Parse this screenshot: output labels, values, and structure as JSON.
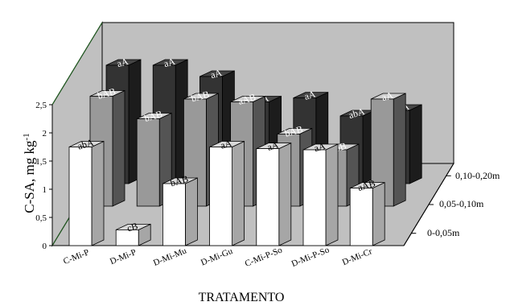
{
  "chart_data": {
    "type": "bar",
    "categories": [
      "C-Mi-P",
      "D-Mi-P",
      "D-Mi-Mu",
      "D-Mi-Gu",
      "C-Mi-P-So",
      "D-Mi-P-So",
      "D-Mi-Cr"
    ],
    "series": [
      {
        "name": "0-0,05m",
        "values": [
          1.75,
          0.28,
          1.1,
          1.75,
          1.72,
          1.7,
          1.02
        ],
        "labels": [
          "abA",
          "cB",
          "bAB",
          "aA",
          "aA",
          "aA",
          "aAB"
        ],
        "color": "#ffffff"
      },
      {
        "name": "0,05-0,10m",
        "values": [
          1.95,
          1.55,
          1.9,
          1.85,
          1.28,
          1.0,
          1.9
        ],
        "labels": [
          "bAB",
          "bAB",
          "bAB",
          "aAB",
          "bAB",
          "bB",
          "aA"
        ],
        "color": "#999999"
      },
      {
        "name": "0,10-0,20m",
        "values": [
          2.1,
          2.1,
          1.9,
          1.45,
          1.52,
          1.2,
          1.3
        ],
        "labels": [
          "aA",
          "aA",
          "aA",
          "aA",
          "aA",
          "abA",
          "aA"
        ],
        "color": "#333333"
      }
    ],
    "ylabel": "C-SA, mg kg-1",
    "xlabel": "TRATAMENTO",
    "ylim": [
      0,
      2.5
    ],
    "yticks": [
      "0",
      "0,5",
      "1",
      "1,5",
      "2",
      "2,5"
    ],
    "grid": false
  }
}
